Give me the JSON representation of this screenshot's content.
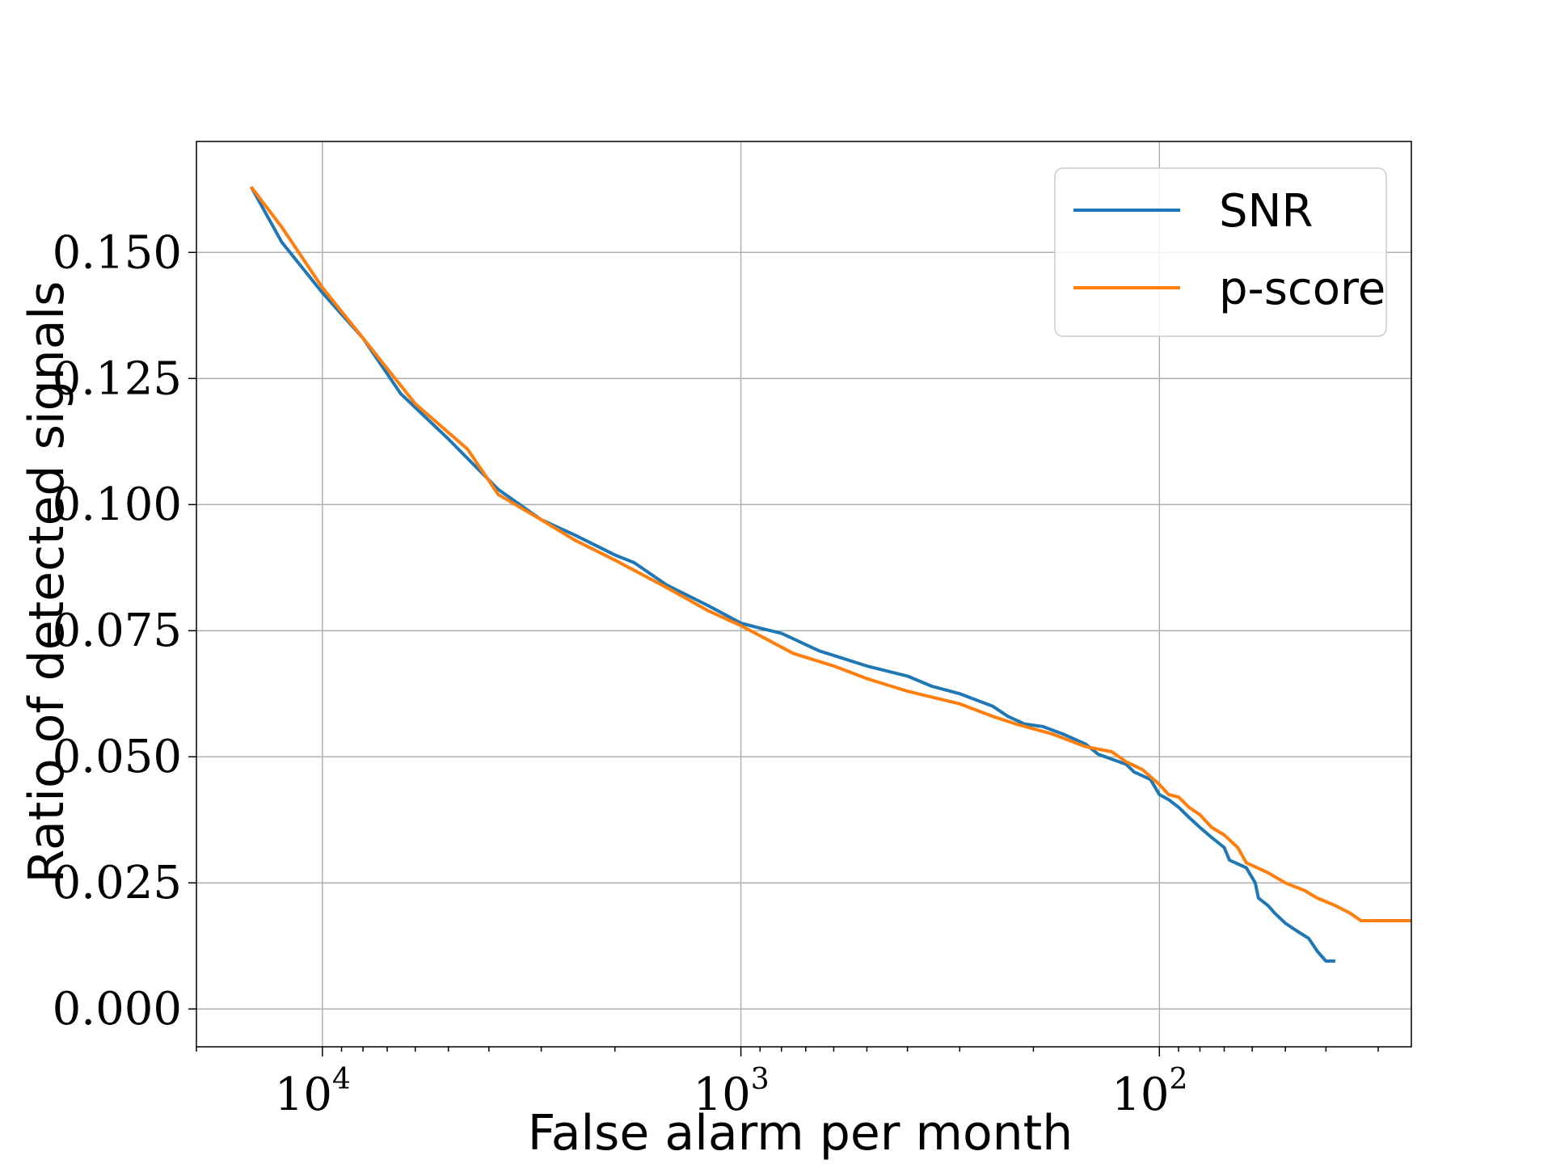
{
  "chart_data": {
    "type": "line",
    "title": "",
    "xlabel": "False alarm per month",
    "ylabel": "Ratio of detected signals",
    "x_scale": "log",
    "x_reversed": true,
    "xlim": [
      20000,
      25
    ],
    "ylim": [
      -0.0075,
      0.172
    ],
    "x_ticks": [
      {
        "value": 10000,
        "base": "10",
        "exp": "4"
      },
      {
        "value": 1000,
        "base": "10",
        "exp": "3"
      },
      {
        "value": 100,
        "base": "10",
        "exp": "2"
      }
    ],
    "y_ticks": [
      0.0,
      0.025,
      0.05,
      0.075,
      0.1,
      0.125,
      0.15
    ],
    "y_tick_labels": [
      "0.000",
      "0.025",
      "0.050",
      "0.075",
      "0.100",
      "0.125",
      "0.150"
    ],
    "grid": true,
    "legend_position": "top-right",
    "series": [
      {
        "name": "SNR",
        "color": "#1f77b4",
        "points": [
          [
            14800,
            0.163
          ],
          [
            12500,
            0.152
          ],
          [
            10000,
            0.142
          ],
          [
            8000,
            0.133
          ],
          [
            6500,
            0.122
          ],
          [
            5000,
            0.113
          ],
          [
            3800,
            0.103
          ],
          [
            3000,
            0.097
          ],
          [
            2500,
            0.094
          ],
          [
            2000,
            0.09
          ],
          [
            1800,
            0.0885
          ],
          [
            1500,
            0.084
          ],
          [
            1200,
            0.08
          ],
          [
            1000,
            0.0765
          ],
          [
            900,
            0.0755
          ],
          [
            800,
            0.0745
          ],
          [
            650,
            0.071
          ],
          [
            500,
            0.068
          ],
          [
            400,
            0.066
          ],
          [
            350,
            0.064
          ],
          [
            300,
            0.0625
          ],
          [
            250,
            0.06
          ],
          [
            230,
            0.058
          ],
          [
            210,
            0.0565
          ],
          [
            190,
            0.056
          ],
          [
            170,
            0.0545
          ],
          [
            150,
            0.0525
          ],
          [
            140,
            0.0505
          ],
          [
            120,
            0.0485
          ],
          [
            115,
            0.047
          ],
          [
            105,
            0.0455
          ],
          [
            100,
            0.0425
          ],
          [
            95,
            0.0415
          ],
          [
            90,
            0.04
          ],
          [
            85,
            0.038
          ],
          [
            80,
            0.036
          ],
          [
            75,
            0.034
          ],
          [
            70,
            0.032
          ],
          [
            68,
            0.0295
          ],
          [
            62,
            0.028
          ],
          [
            59,
            0.025
          ],
          [
            58,
            0.022
          ],
          [
            55,
            0.0205
          ],
          [
            53,
            0.019
          ],
          [
            50,
            0.017
          ],
          [
            47,
            0.0155
          ],
          [
            44,
            0.014
          ],
          [
            42,
            0.0115
          ],
          [
            41,
            0.0105
          ],
          [
            40,
            0.0095
          ],
          [
            38,
            0.0095
          ]
        ]
      },
      {
        "name": "p-score",
        "color": "#ff7f0e",
        "points": [
          [
            14800,
            0.163
          ],
          [
            12500,
            0.155
          ],
          [
            10000,
            0.143
          ],
          [
            8000,
            0.133
          ],
          [
            6000,
            0.12
          ],
          [
            4500,
            0.111
          ],
          [
            3800,
            0.102
          ],
          [
            3000,
            0.097
          ],
          [
            2500,
            0.093
          ],
          [
            2000,
            0.089
          ],
          [
            1500,
            0.0835
          ],
          [
            1200,
            0.079
          ],
          [
            1000,
            0.076
          ],
          [
            900,
            0.074
          ],
          [
            750,
            0.0705
          ],
          [
            600,
            0.068
          ],
          [
            500,
            0.0655
          ],
          [
            400,
            0.063
          ],
          [
            300,
            0.0605
          ],
          [
            250,
            0.058
          ],
          [
            220,
            0.0565
          ],
          [
            180,
            0.0545
          ],
          [
            150,
            0.052
          ],
          [
            130,
            0.051
          ],
          [
            120,
            0.049
          ],
          [
            110,
            0.0475
          ],
          [
            100,
            0.0445
          ],
          [
            95,
            0.0425
          ],
          [
            90,
            0.042
          ],
          [
            85,
            0.04
          ],
          [
            80,
            0.0385
          ],
          [
            75,
            0.036
          ],
          [
            70,
            0.0345
          ],
          [
            65,
            0.032
          ],
          [
            62,
            0.029
          ],
          [
            55,
            0.027
          ],
          [
            50,
            0.025
          ],
          [
            45,
            0.0235
          ],
          [
            42,
            0.022
          ],
          [
            38,
            0.0205
          ],
          [
            35,
            0.019
          ],
          [
            33,
            0.0175
          ],
          [
            25,
            0.0175
          ]
        ]
      }
    ]
  }
}
